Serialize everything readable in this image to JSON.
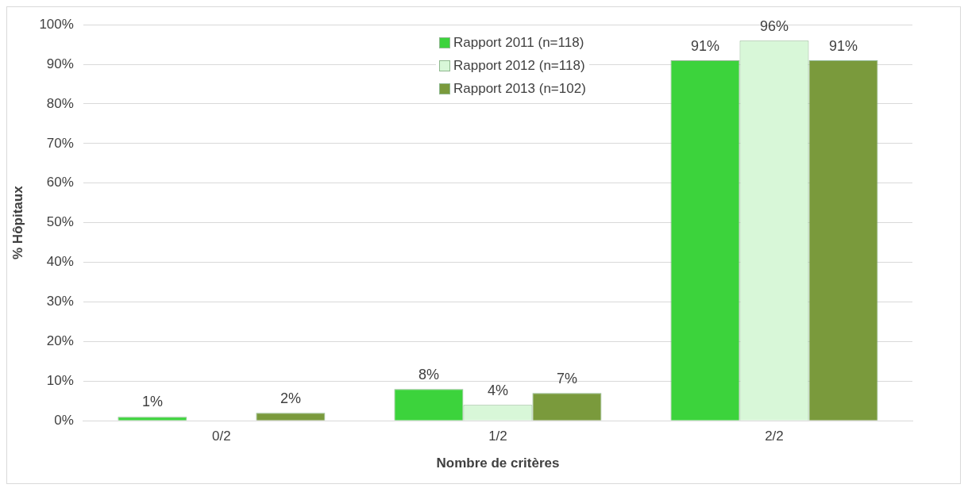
{
  "chart_data": {
    "type": "bar",
    "xlabel": "Nombre de critères",
    "ylabel": "% Hôpitaux",
    "categories": [
      "0/2",
      "1/2",
      "2/2"
    ],
    "series": [
      {
        "name": "Rapport 2011 (n=118)",
        "color": "#3cd33c",
        "values": [
          1,
          8,
          91
        ],
        "value_labels": [
          "1%",
          "8%",
          "91%"
        ]
      },
      {
        "name": "Rapport 2012 (n=118)",
        "color": "#d8f7d8",
        "values": [
          0,
          4,
          96
        ],
        "value_labels": [
          null,
          "4%",
          "96%"
        ]
      },
      {
        "name": "Rapport 2013 (n=102)",
        "color": "#7a9a3c",
        "values": [
          2,
          7,
          91
        ],
        "value_labels": [
          "2%",
          "7%",
          "91%"
        ]
      }
    ],
    "ylim": [
      0,
      100
    ],
    "yticks": [
      {
        "value": 0,
        "label": "0%"
      },
      {
        "value": 10,
        "label": "10%"
      },
      {
        "value": 20,
        "label": "20%"
      },
      {
        "value": 30,
        "label": "30%"
      },
      {
        "value": 40,
        "label": "40%"
      },
      {
        "value": 50,
        "label": "50%"
      },
      {
        "value": 60,
        "label": "60%"
      },
      {
        "value": 70,
        "label": "70%"
      },
      {
        "value": 80,
        "label": "80%"
      },
      {
        "value": 90,
        "label": "90%"
      },
      {
        "value": 100,
        "label": "100%"
      }
    ],
    "grid": "y",
    "legend": "top"
  }
}
